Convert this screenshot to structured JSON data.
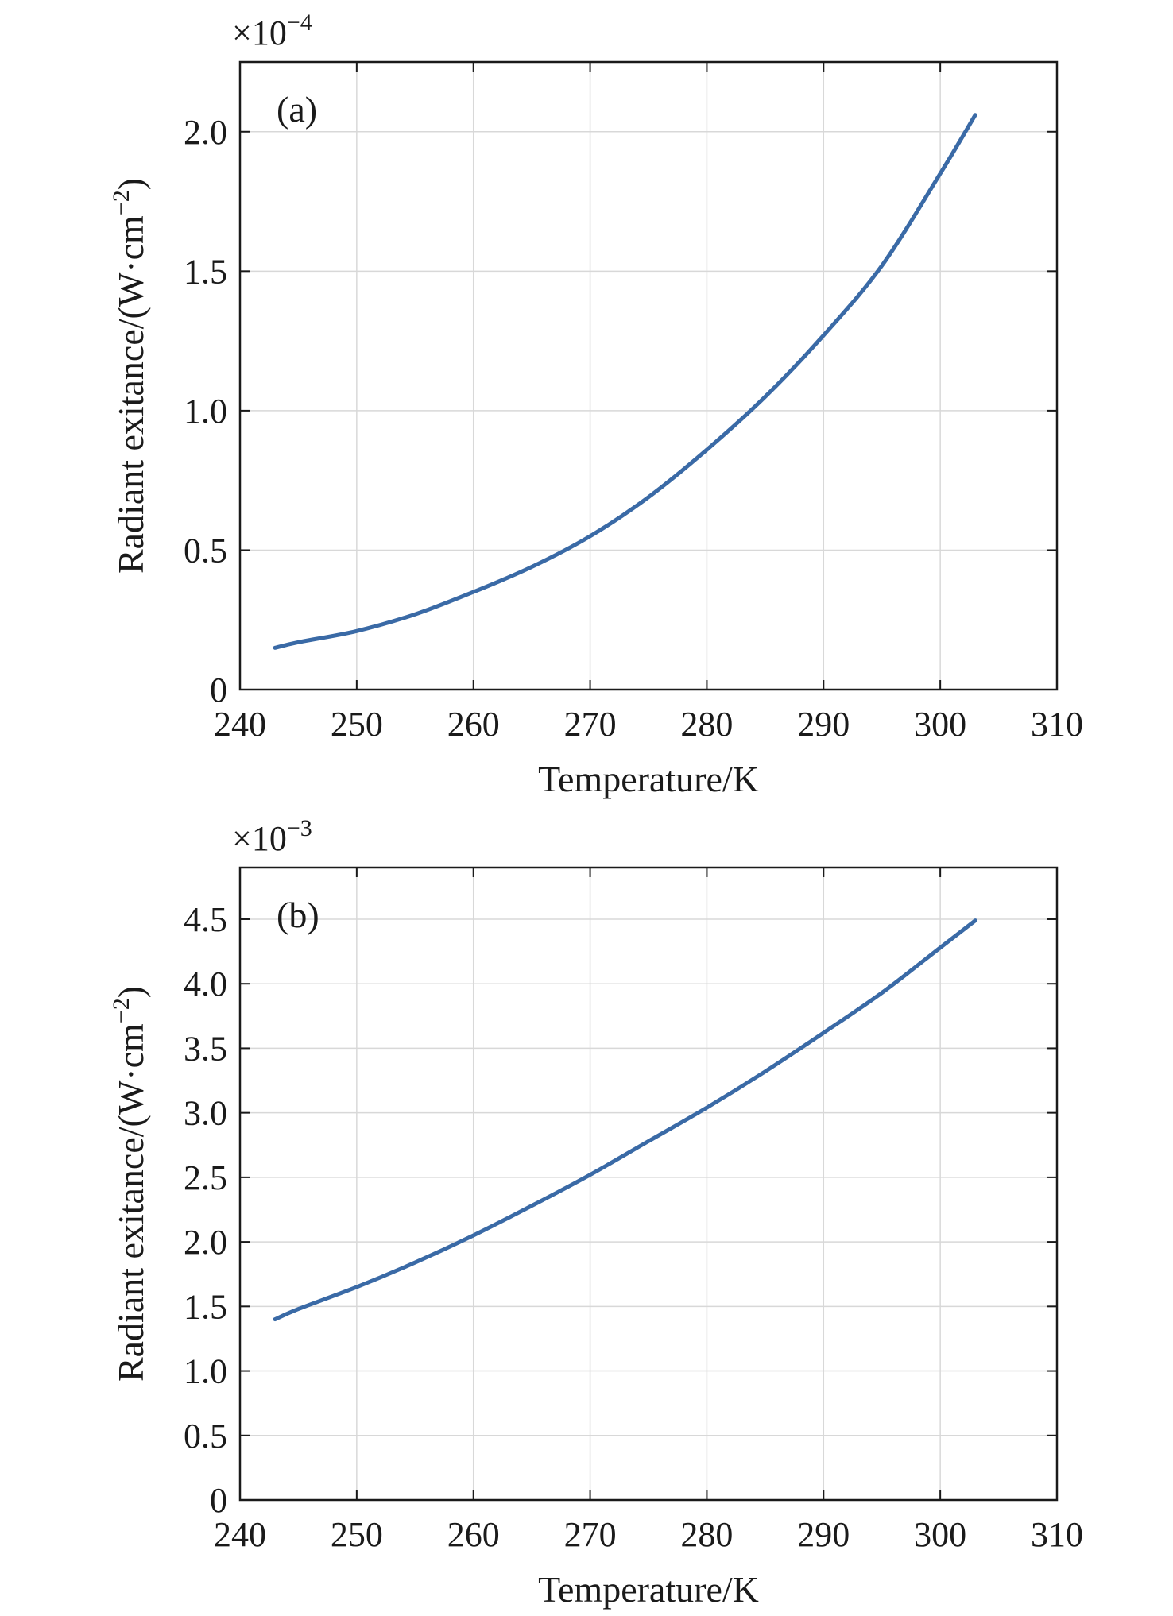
{
  "chart_data": [
    {
      "type": "line",
      "panel_label": "(a)",
      "multiplier": {
        "base": "×10",
        "exponent": "−4"
      },
      "xlabel": "Temperature/K",
      "ylabel": {
        "prefix": "Radiant exitance/(W·cm",
        "exponent": "−2",
        "suffix": ")"
      },
      "xlim": [
        240,
        310
      ],
      "ylim": [
        0,
        2.25
      ],
      "x_ticks": [
        240,
        250,
        260,
        270,
        280,
        290,
        300,
        310
      ],
      "y_ticks": [
        0,
        0.5,
        1.0,
        1.5,
        2.0
      ],
      "y_tick_labels": [
        "0",
        "0.5",
        "1.0",
        "1.5",
        "2.0"
      ],
      "grid": true,
      "line_color": "#3a6aa6",
      "series": [
        {
          "x": [
            243,
            245,
            250,
            255,
            260,
            265,
            270,
            275,
            280,
            285,
            290,
            295,
            300,
            303
          ],
          "values": [
            0.15,
            0.17,
            0.21,
            0.27,
            0.35,
            0.44,
            0.55,
            0.69,
            0.86,
            1.05,
            1.27,
            1.52,
            1.85,
            2.06
          ]
        }
      ]
    },
    {
      "type": "line",
      "panel_label": "(b)",
      "multiplier": {
        "base": "×10",
        "exponent": "−3"
      },
      "xlabel": "Temperature/K",
      "ylabel": {
        "prefix": "Radiant exitance/(W·cm",
        "exponent": "−2",
        "suffix": ")"
      },
      "xlim": [
        240,
        310
      ],
      "ylim": [
        0,
        4.9
      ],
      "x_ticks": [
        240,
        250,
        260,
        270,
        280,
        290,
        300,
        310
      ],
      "y_ticks": [
        0,
        0.5,
        1.0,
        1.5,
        2.0,
        2.5,
        3.0,
        3.5,
        4.0,
        4.5
      ],
      "y_tick_labels": [
        "0",
        "0.5",
        "1.0",
        "1.5",
        "2.0",
        "2.5",
        "3.0",
        "3.5",
        "4.0",
        "4.5"
      ],
      "grid": true,
      "line_color": "#3a6aa6",
      "series": [
        {
          "x": [
            243,
            245,
            250,
            255,
            260,
            265,
            270,
            275,
            280,
            285,
            290,
            295,
            300,
            303
          ],
          "values": [
            1.4,
            1.48,
            1.65,
            1.84,
            2.05,
            2.28,
            2.52,
            2.78,
            3.04,
            3.32,
            3.62,
            3.93,
            4.28,
            4.49
          ]
        }
      ]
    }
  ]
}
